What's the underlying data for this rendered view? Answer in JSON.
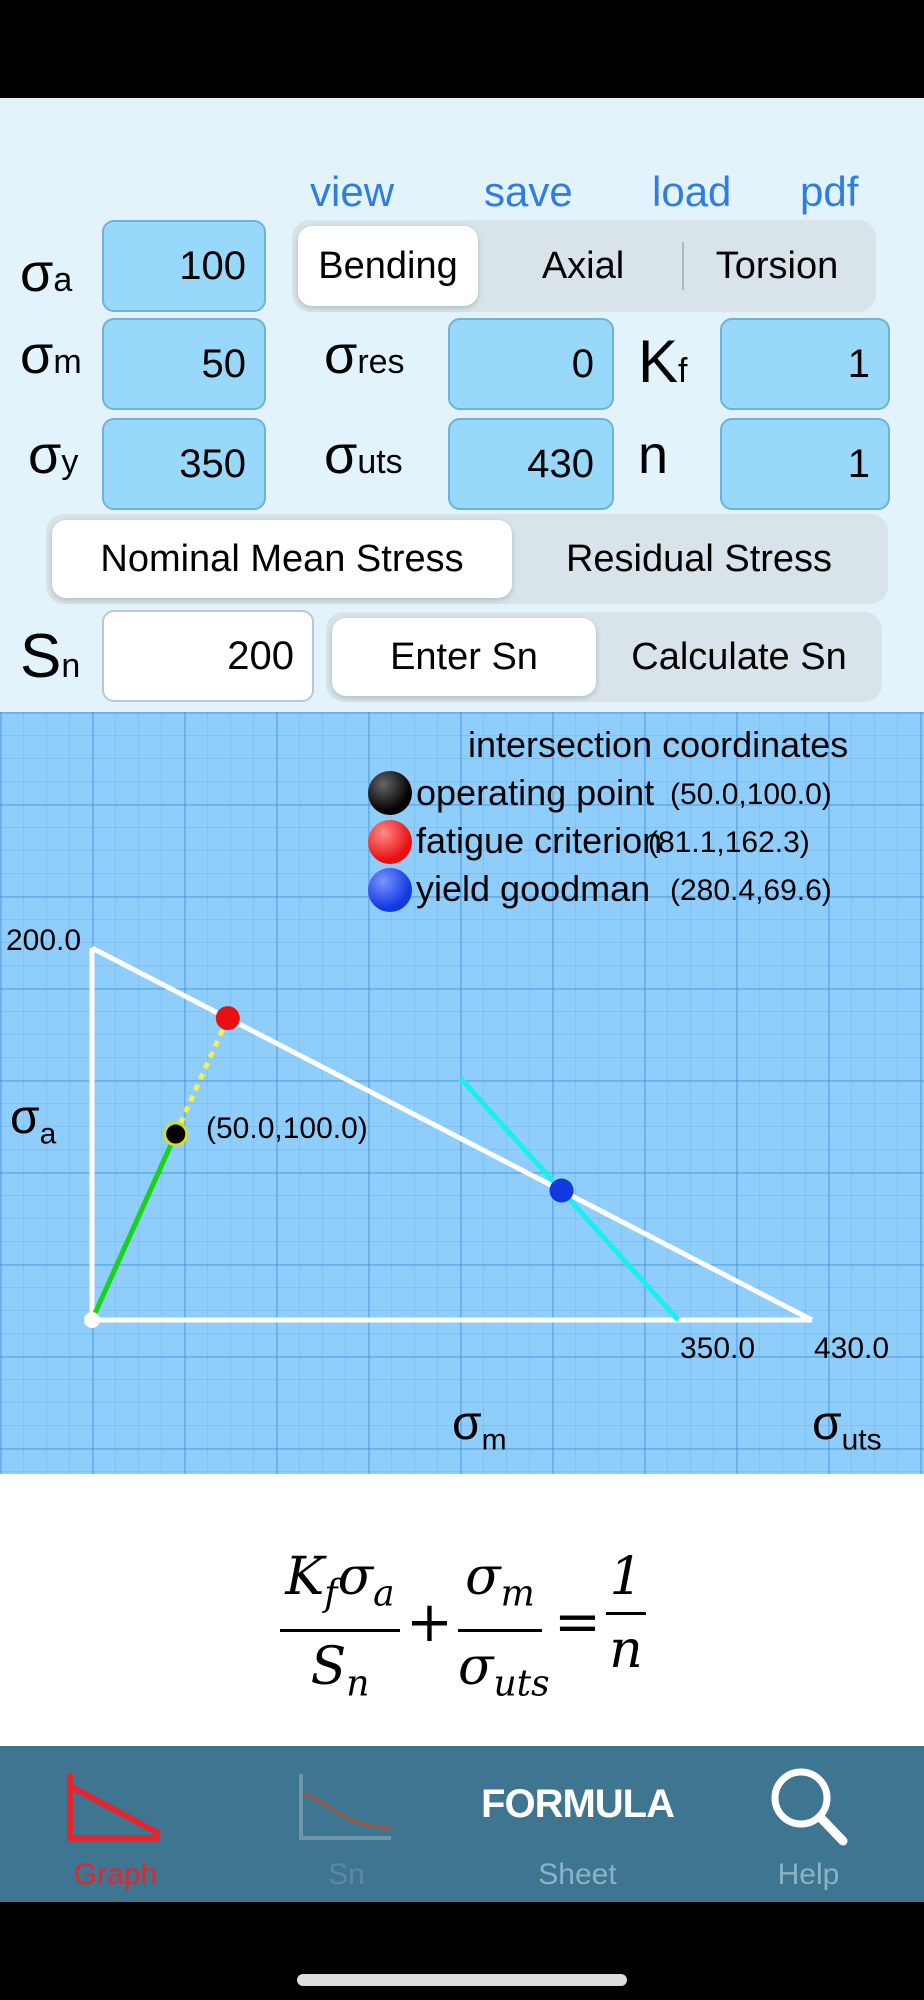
{
  "toolbar": {
    "view": "view",
    "save": "save",
    "load": "load",
    "pdf": "pdf"
  },
  "inputs": {
    "sigma_a": {
      "symbol": "σ",
      "sub": "a",
      "value": "100"
    },
    "sigma_m": {
      "symbol": "σ",
      "sub": "m",
      "value": "50"
    },
    "sigma_y": {
      "symbol": "σ",
      "sub": "y",
      "value": "350"
    },
    "sigma_res": {
      "symbol": "σ",
      "sub": "res",
      "value": "0"
    },
    "sigma_uts": {
      "symbol": "σ",
      "sub": "uts",
      "value": "430"
    },
    "kf": {
      "symbol": "K",
      "sub": "f",
      "value": "1"
    },
    "n": {
      "symbol": "n",
      "value": "1"
    },
    "sn": {
      "symbol": "S",
      "sub": "n",
      "value": "200"
    }
  },
  "load_type": {
    "options": [
      "Bending",
      "Axial",
      "Torsion"
    ],
    "selected": "Bending"
  },
  "stress_mode": {
    "options": [
      "Nominal Mean Stress",
      "Residual Stress"
    ],
    "selected": "Nominal Mean Stress"
  },
  "sn_mode": {
    "options": [
      "Enter Sn",
      "Calculate Sn"
    ],
    "selected": "Enter Sn"
  },
  "graph": {
    "legend_title": "intersection coordinates",
    "legend": [
      {
        "name": "operating point",
        "coords": "(50.0,100.0)",
        "color": "#000000"
      },
      {
        "name": "fatigue criterion",
        "coords": "(81.1,162.3)",
        "color": "#e81010"
      },
      {
        "name": "yield goodman",
        "coords": "(280.4,69.6)",
        "color": "#1238e0"
      }
    ],
    "y_max_label": "200.0",
    "y_axis_label": {
      "symbol": "σ",
      "sub": "a"
    },
    "x_axis_label": {
      "symbol": "σ",
      "sub": "m"
    },
    "x_end_label": {
      "symbol": "σ",
      "sub": "uts"
    },
    "tick_yield": "350.0",
    "tick_uts": "430.0",
    "point_label": "(50.0,100.0)",
    "axes": {
      "x_max": 430,
      "y_max": 200,
      "yield": 350
    },
    "points": {
      "operating": [
        50.0,
        100.0
      ],
      "fatigue": [
        81.1,
        162.3
      ],
      "yield_goodman": [
        280.4,
        69.6
      ]
    },
    "colors": {
      "load_line": "#18d418",
      "extension": "#f2f24a",
      "yield_line": "#18f0f0",
      "goodman": "#ffffff"
    }
  },
  "formula": {
    "num1": "K",
    "num1_sub": "f",
    "num1_rest": "σ",
    "num1_rest_sub": "a",
    "den1": "S",
    "den1_sub": "n",
    "plus": "+",
    "num2": "σ",
    "num2_sub": "m",
    "den2": "σ",
    "den2_sub": "uts",
    "equals": "=",
    "num3": "1",
    "den3": "n"
  },
  "tabs": [
    {
      "label": "Graph",
      "active": true,
      "icon": "graph-icon"
    },
    {
      "label": "Sn",
      "active": false,
      "icon": "sn-curve-icon"
    },
    {
      "label": "Sheet",
      "active": false,
      "icon": "formula-icon",
      "icon_text": "FORMULA"
    },
    {
      "label": "Help",
      "active": false,
      "icon": "search-icon"
    }
  ],
  "colors": {
    "active_tab": "#e5242b",
    "link": "#2f7de1",
    "field": "#97d8fb"
  }
}
